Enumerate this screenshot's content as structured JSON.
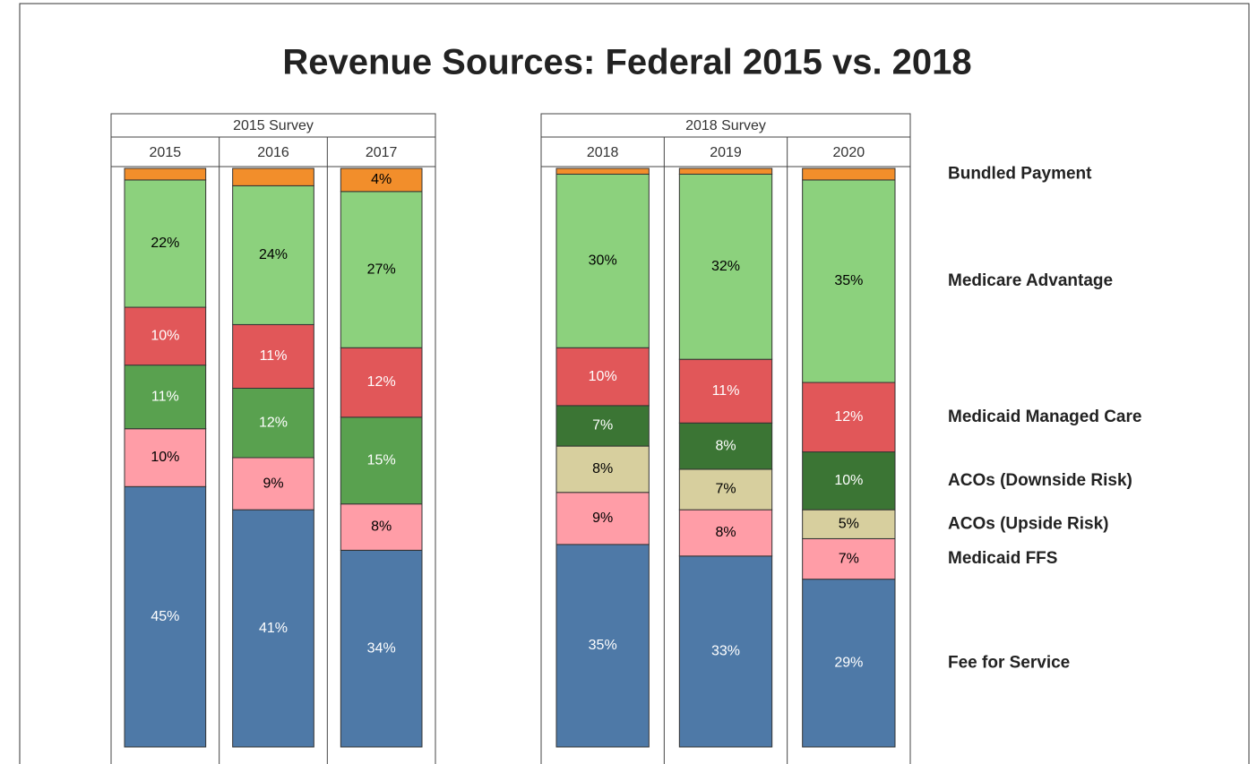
{
  "chart_data": {
    "type": "bar",
    "stacked": true,
    "title": "Revenue Sources: Federal 2015 vs. 2018",
    "ylim": [
      0,
      100
    ],
    "panels": [
      {
        "title": "2015 Survey",
        "categories": [
          "2015",
          "2016",
          "2017"
        ],
        "series": [
          {
            "name": "Fee for Service",
            "color": "#4e79a7",
            "label_color": "#ffffff",
            "values": [
              45,
              41,
              34
            ],
            "value_labels": [
              "45%",
              "41%",
              "34%"
            ]
          },
          {
            "name": "Medicaid FFS",
            "color": "#ff9da7",
            "label_color": "#000000",
            "values": [
              10,
              9,
              8
            ],
            "value_labels": [
              "10%",
              "9%",
              "8%"
            ]
          },
          {
            "name": null,
            "color": "#59a14f",
            "label_color": "#ffffff",
            "values": [
              11,
              12,
              15
            ],
            "value_labels": [
              "11%",
              "12%",
              "15%"
            ]
          },
          {
            "name": "Medicaid Managed Care",
            "color": "#e15759",
            "label_color": "#ffffff",
            "values": [
              10,
              11,
              12
            ],
            "value_labels": [
              "10%",
              "11%",
              "12%"
            ]
          },
          {
            "name": "Medicare Advantage",
            "color": "#8cd17d",
            "label_color": "#000000",
            "values": [
              22,
              24,
              27
            ],
            "value_labels": [
              "22%",
              "24%",
              "27%"
            ]
          },
          {
            "name": "Bundled Payment",
            "color": "#f28e2b",
            "label_color": "#000000",
            "values": [
              2,
              3,
              4
            ],
            "value_labels": [
              null,
              null,
              "4%"
            ]
          }
        ]
      },
      {
        "title": "2018 Survey",
        "categories": [
          "2018",
          "2019",
          "2020"
        ],
        "series": [
          {
            "name": "Fee for Service",
            "color": "#4e79a7",
            "label_color": "#ffffff",
            "values": [
              35,
              33,
              29
            ],
            "value_labels": [
              "35%",
              "33%",
              "29%"
            ]
          },
          {
            "name": "Medicaid FFS",
            "color": "#ff9da7",
            "label_color": "#000000",
            "values": [
              9,
              8,
              7
            ],
            "value_labels": [
              "9%",
              "8%",
              "7%"
            ]
          },
          {
            "name": "ACOs (Upside Risk)",
            "color": "#d7cf9e",
            "label_color": "#000000",
            "values": [
              8,
              7,
              5
            ],
            "value_labels": [
              "8%",
              "7%",
              "5%"
            ]
          },
          {
            "name": "ACOs (Downside Risk)",
            "color": "#3b7534",
            "label_color": "#ffffff",
            "values": [
              7,
              8,
              10
            ],
            "value_labels": [
              "7%",
              "8%",
              "10%"
            ]
          },
          {
            "name": "Medicaid Managed Care",
            "color": "#e15759",
            "label_color": "#ffffff",
            "values": [
              10,
              11,
              12
            ],
            "value_labels": [
              "10%",
              "11%",
              "12%"
            ]
          },
          {
            "name": "Medicare Advantage",
            "color": "#8cd17d",
            "label_color": "#000000",
            "values": [
              30,
              32,
              35
            ],
            "value_labels": [
              "30%",
              "32%",
              "35%"
            ]
          },
          {
            "name": "Bundled Payment",
            "color": "#f28e2b",
            "label_color": "#000000",
            "values": [
              1,
              1,
              2
            ],
            "value_labels": [
              null,
              null,
              null
            ]
          }
        ]
      }
    ]
  }
}
